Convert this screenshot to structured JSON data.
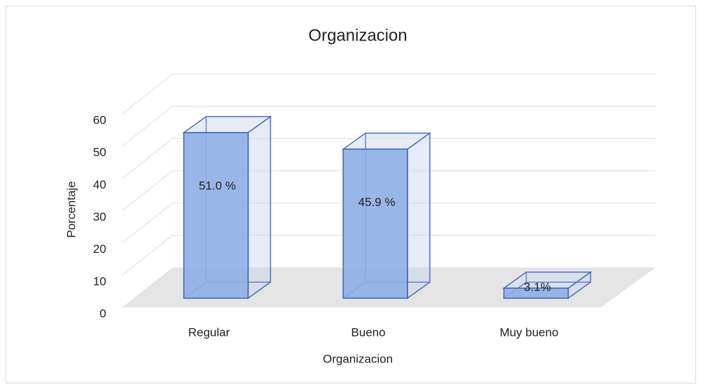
{
  "chart_data": {
    "type": "bar3d",
    "title": "Organizacion",
    "categories": [
      "Regular",
      "Bueno",
      "Muy bueno"
    ],
    "values": [
      51.0,
      45.9,
      3.1
    ],
    "value_labels": [
      "51.0 %",
      "45.9 %",
      "3.1%"
    ],
    "color": "#8eaee6",
    "ylim": [
      0,
      60
    ],
    "yticks": [
      0,
      10,
      20,
      30,
      40,
      50,
      60
    ],
    "xlabel": "Organizacion",
    "ylabel": "Porcentaje",
    "grid": true
  }
}
